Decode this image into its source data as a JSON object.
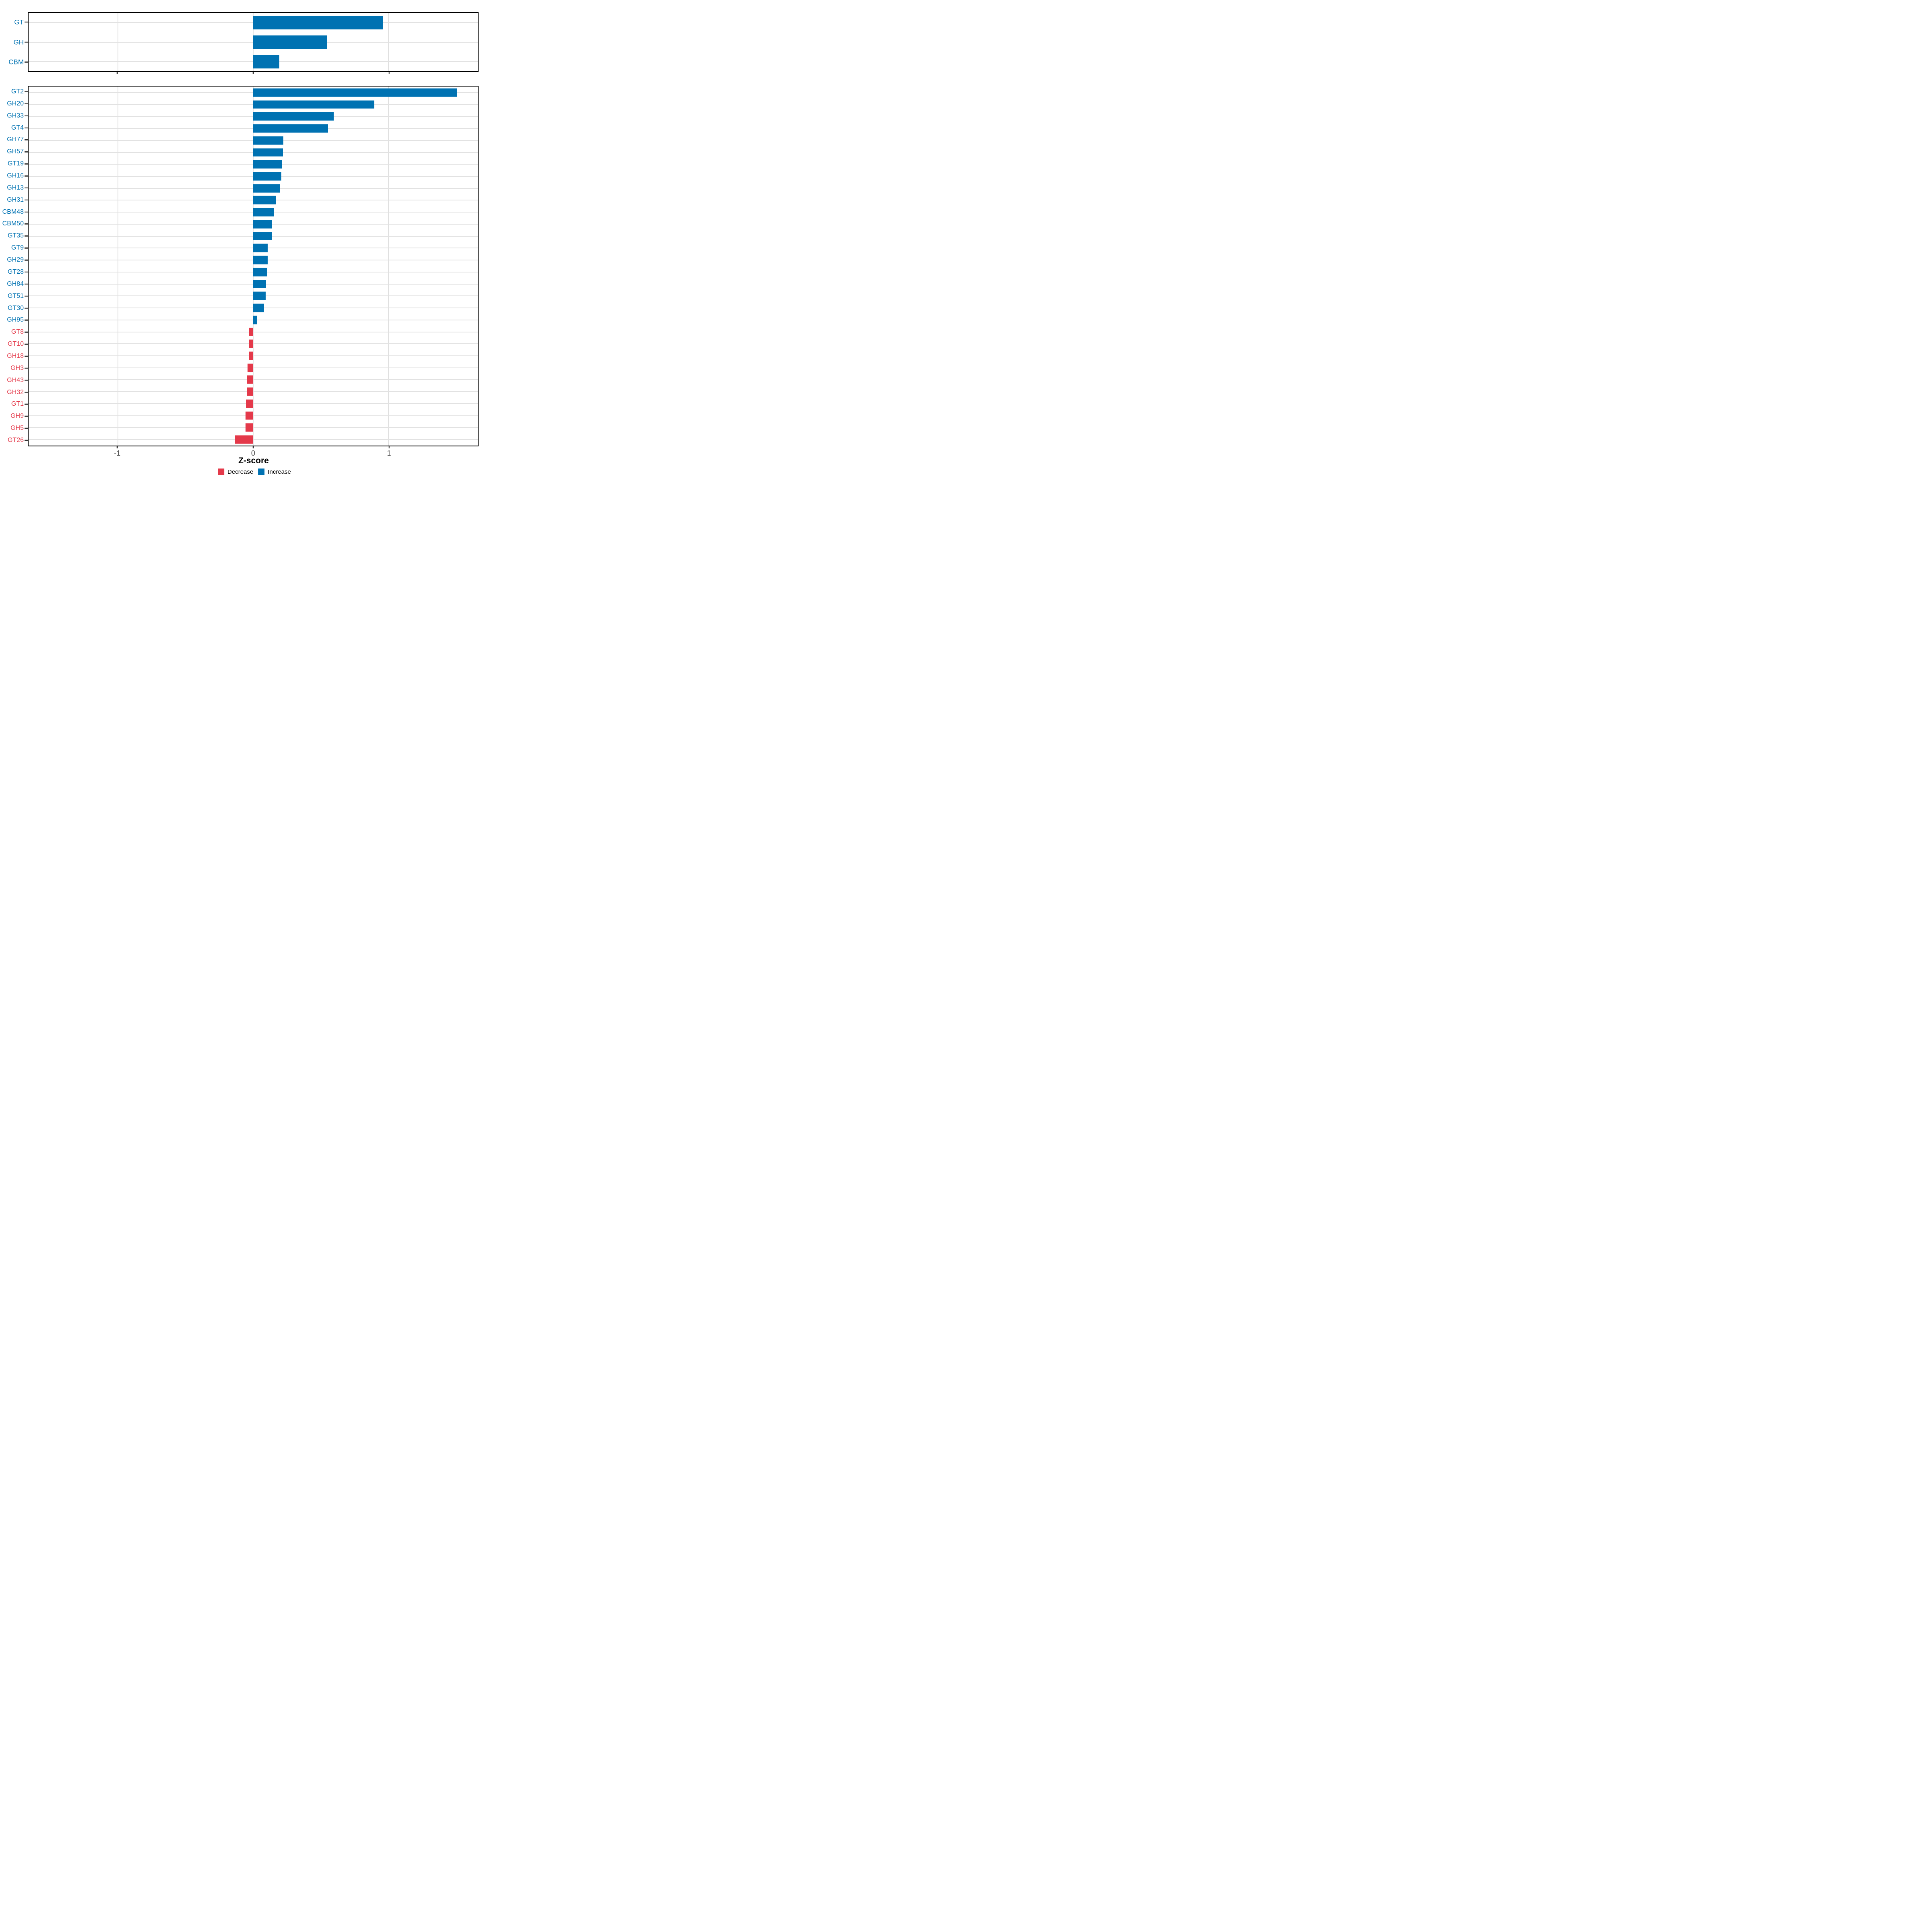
{
  "figure": {
    "xlabel": "Z-score",
    "x_ticks": [
      -1,
      0,
      1
    ],
    "x_range": [
      -1.659,
      1.659
    ],
    "background": "#ffffff",
    "colors": {
      "increase": "#0072b2",
      "decrease": "#e4394a",
      "grid": "#e2e2e2",
      "axis_text": "#4d4d4d",
      "tick_mark": "#333333",
      "panel_border": "#000000"
    },
    "legend": [
      {
        "label": "Decrease",
        "color_key": "decrease"
      },
      {
        "label": "Increase",
        "color_key": "increase"
      }
    ]
  },
  "chart_data": [
    {
      "type": "bar",
      "orientation": "horizontal",
      "panel": "category-summary",
      "title": "",
      "xlabel": "Z-score",
      "ylabel": "",
      "xlim": [
        -1.659,
        1.659
      ],
      "grid": true,
      "categories": [
        "GT",
        "GH",
        "CBM"
      ],
      "values": [
        0.957,
        0.548,
        0.192
      ],
      "directions": [
        "Increase",
        "Increase",
        "Increase"
      ]
    },
    {
      "type": "bar",
      "orientation": "horizontal",
      "panel": "family-detail",
      "title": "",
      "xlabel": "Z-score",
      "ylabel": "",
      "xlim": [
        -1.659,
        1.659
      ],
      "grid": true,
      "categories": [
        "GT2",
        "GH20",
        "GH33",
        "GT4",
        "GH77",
        "GH57",
        "GT19",
        "GH16",
        "GH13",
        "GH31",
        "CBM48",
        "CBM50",
        "GT35",
        "GT9",
        "GH29",
        "GT28",
        "GH84",
        "GT51",
        "GT30",
        "GH95",
        "GT8",
        "GT10",
        "GH18",
        "GH3",
        "GH43",
        "GH32",
        "GT1",
        "GH9",
        "GH5",
        "GT26"
      ],
      "values": [
        1.507,
        0.896,
        0.594,
        0.553,
        0.223,
        0.221,
        0.214,
        0.208,
        0.2,
        0.168,
        0.151,
        0.141,
        0.139,
        0.108,
        0.107,
        0.101,
        0.095,
        0.091,
        0.079,
        0.028,
        -0.031,
        -0.032,
        -0.033,
        -0.042,
        -0.044,
        -0.045,
        -0.055,
        -0.056,
        -0.056,
        -0.135
      ],
      "directions": [
        "Increase",
        "Increase",
        "Increase",
        "Increase",
        "Increase",
        "Increase",
        "Increase",
        "Increase",
        "Increase",
        "Increase",
        "Increase",
        "Increase",
        "Increase",
        "Increase",
        "Increase",
        "Increase",
        "Increase",
        "Increase",
        "Increase",
        "Increase",
        "Decrease",
        "Decrease",
        "Decrease",
        "Decrease",
        "Decrease",
        "Decrease",
        "Decrease",
        "Decrease",
        "Decrease",
        "Decrease"
      ]
    }
  ]
}
